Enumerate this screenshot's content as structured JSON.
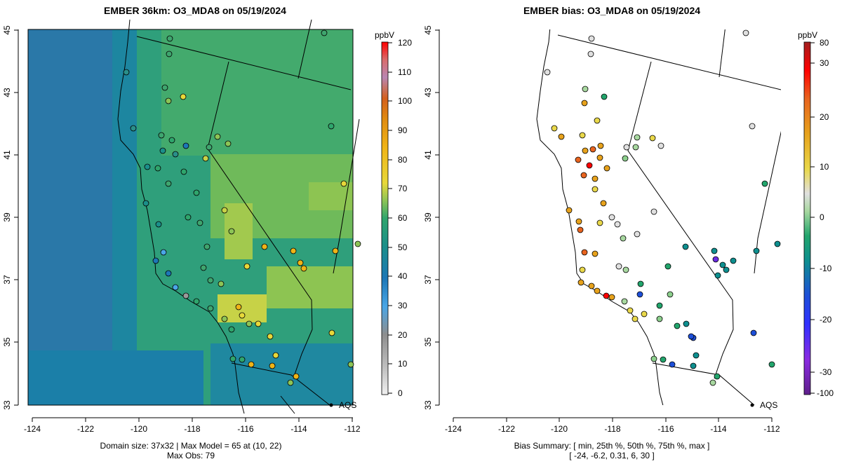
{
  "left_panel": {
    "title": "EMBER 36km: O3_MDA8 on 05/19/2024",
    "x_ticks": [
      "-124",
      "-122",
      "-120",
      "-118",
      "-116",
      "-114",
      "-112"
    ],
    "y_ticks": [
      "33",
      "35",
      "37",
      "39",
      "41",
      "43",
      "45"
    ],
    "footer_line1": "Domain size: 37x32 | Max Model = 65 at (10, 22)",
    "footer_line2": "Max Obs: 79",
    "aqs_label": "AQS",
    "colorbar": {
      "unit": "ppbV",
      "ticks": [
        "120",
        "110",
        "100",
        "90",
        "80",
        "70",
        "60",
        "50",
        "40",
        "30",
        "20",
        "10",
        "0"
      ],
      "colors": [
        "#ff0000",
        "#d96b6b",
        "#b986b2",
        "#d4601c",
        "#e08c10",
        "#efb417",
        "#e7d83a",
        "#8cc456",
        "#2fa56c",
        "#1b8f8a",
        "#1d77b6",
        "#4aa6e6",
        "#9a9a9a",
        "#e6e6e6"
      ]
    }
  },
  "right_panel": {
    "title": "EMBER bias: O3_MDA8 on 05/19/2024",
    "x_ticks": [
      "-124",
      "-122",
      "-120",
      "-118",
      "-116",
      "-114",
      "-112"
    ],
    "y_ticks": [
      "33",
      "35",
      "37",
      "39",
      "41",
      "43",
      "45"
    ],
    "footer_line1": "Bias Summary: [ min, 25th %, 50th %, 75th %, max ]",
    "footer_line2": "[ -24,  -6.2,  0.31,  6,  30 ]",
    "aqs_label": "AQS",
    "colorbar": {
      "unit": "ppbV",
      "ticks": [
        "80",
        "30",
        "20",
        "10",
        "0",
        "-10",
        "-20",
        "-30",
        "-100"
      ],
      "colors": [
        "#a21f1f",
        "#ff0000",
        "#e8641f",
        "#e7a21c",
        "#e9d84a",
        "#e0e0e0",
        "#8ccf8c",
        "#22a56c",
        "#0e8f8f",
        "#1d4fd8",
        "#3030ff",
        "#8a2be2",
        "#5e1f8a"
      ]
    }
  }
}
